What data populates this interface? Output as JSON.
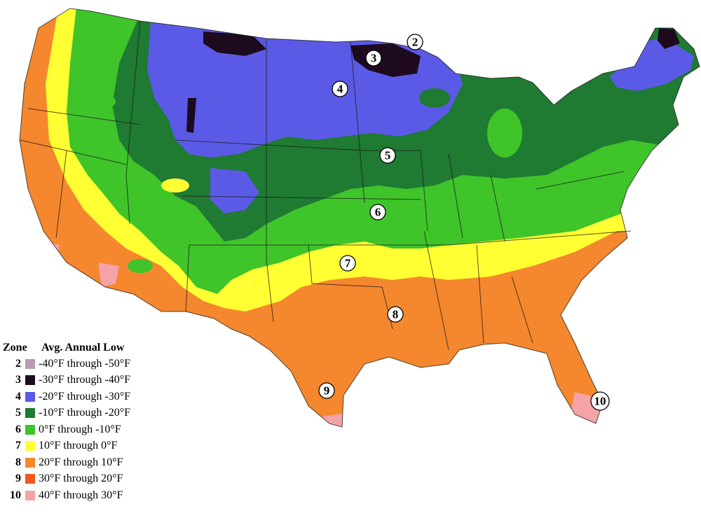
{
  "legend": {
    "zone_header": "Zone",
    "low_header": "Avg. Annual Low",
    "rows": [
      {
        "zone": "2",
        "range": "-40°F through -50°F",
        "color": "#b89ab8"
      },
      {
        "zone": "3",
        "range": "-30°F through -40°F",
        "color": "#1e0a1e"
      },
      {
        "zone": "4",
        "range": "-20°F through -30°F",
        "color": "#5a5ae6"
      },
      {
        "zone": "5",
        "range": "-10°F through -20°F",
        "color": "#1f7a32"
      },
      {
        "zone": "6",
        "range": "0°F through -10°F",
        "color": "#3fc42a"
      },
      {
        "zone": "7",
        "range": "10°F through 0°F",
        "color": "#ffff33"
      },
      {
        "zone": "8",
        "range": "20°F through 10°F",
        "color": "#f5872e"
      },
      {
        "zone": "9",
        "range": "30°F through 20°F",
        "color": "#ee5a1e"
      },
      {
        "zone": "10",
        "range": "40°F through 30°F",
        "color": "#f4a3a8"
      }
    ]
  },
  "map_labels": [
    "2",
    "3",
    "4",
    "5",
    "6",
    "7",
    "8",
    "9",
    "10"
  ]
}
